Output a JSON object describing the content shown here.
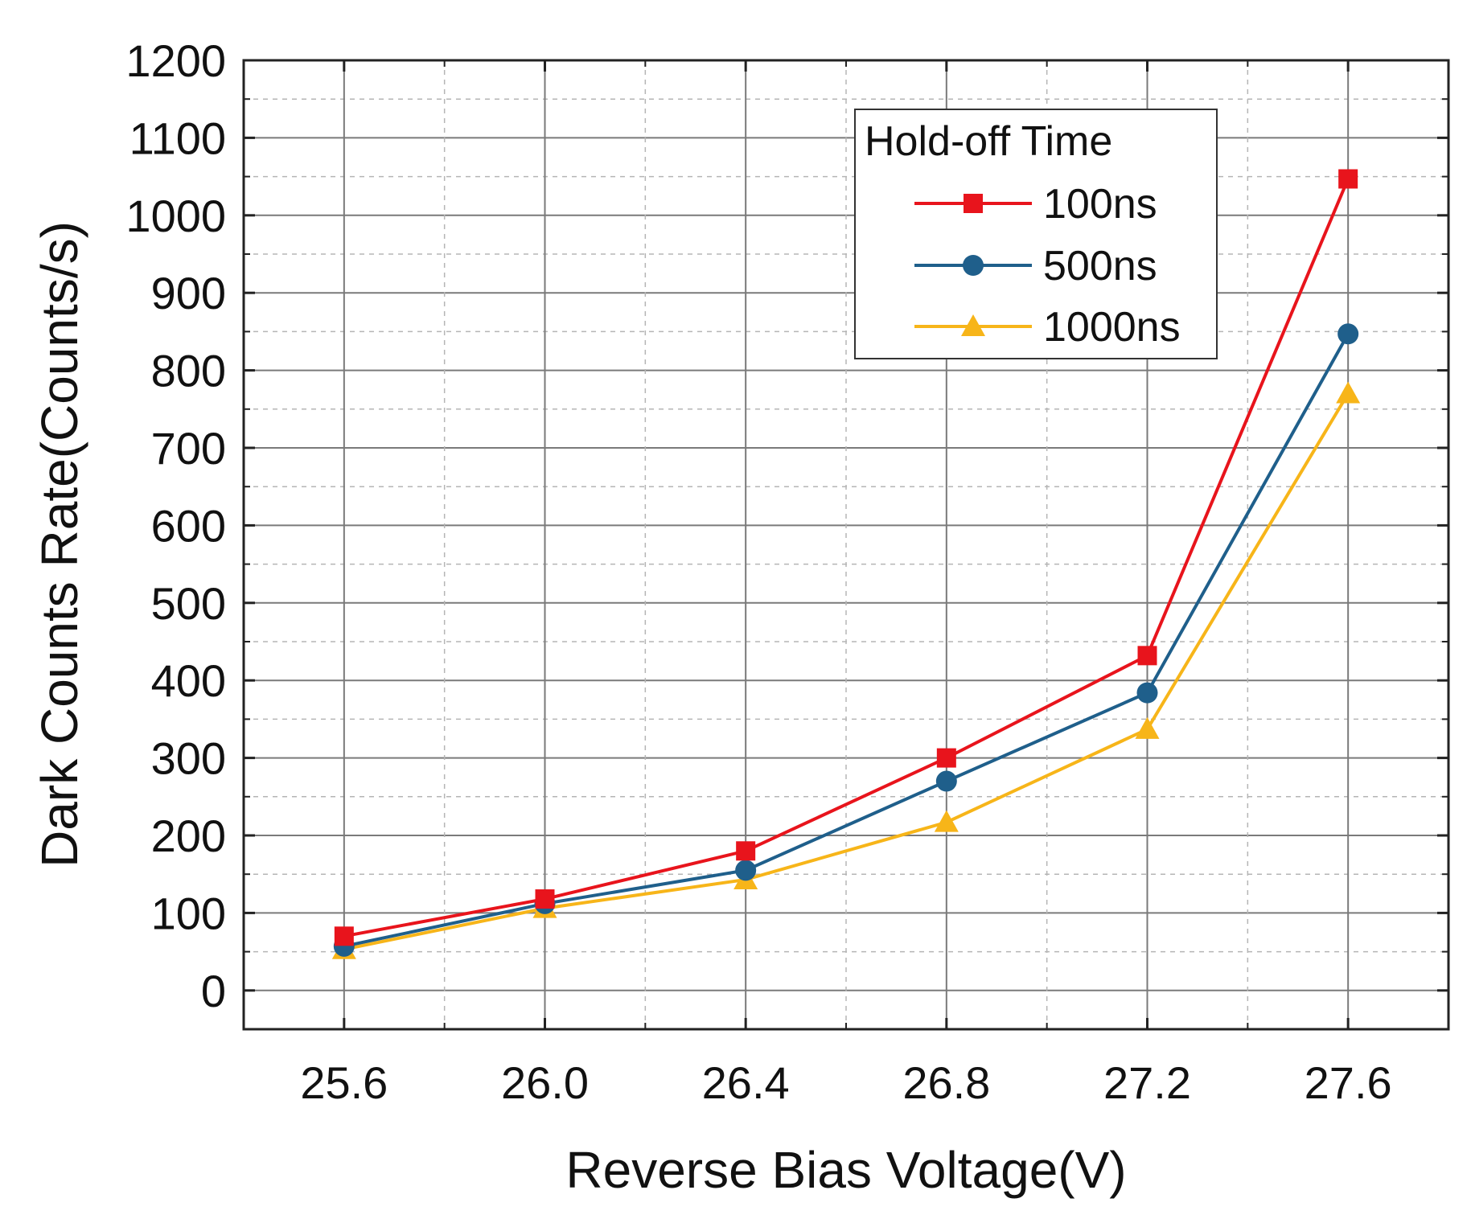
{
  "chart_data": {
    "type": "line",
    "title": "",
    "xlabel": "Reverse Bias Voltage(V)",
    "ylabel": "Dark Counts Rate(Counts/s)",
    "xlim": [
      25.4,
      27.8
    ],
    "ylim": [
      -50,
      1200
    ],
    "x": [
      25.6,
      26.0,
      26.4,
      26.8,
      27.2,
      27.6
    ],
    "x_ticks": [
      "25.6",
      "26.0",
      "26.4",
      "26.8",
      "27.2",
      "27.6"
    ],
    "y_ticks": [
      "0",
      "100",
      "200",
      "300",
      "400",
      "500",
      "600",
      "700",
      "800",
      "900",
      "1000",
      "1100",
      "1200"
    ],
    "grid": true,
    "legend": {
      "title": "Hold-off Time",
      "placement": "top-right"
    },
    "series": [
      {
        "name": "100ns",
        "color": "#e8141c",
        "marker": "square",
        "values": [
          70,
          118,
          180,
          300,
          432,
          1047
        ]
      },
      {
        "name": "500ns",
        "color": "#1f5f8b",
        "marker": "circle",
        "values": [
          57,
          112,
          155,
          270,
          384,
          847
        ]
      },
      {
        "name": "1000ns",
        "color": "#f7b519",
        "marker": "triangle",
        "values": [
          53,
          106,
          143,
          217,
          337,
          770
        ]
      }
    ]
  }
}
